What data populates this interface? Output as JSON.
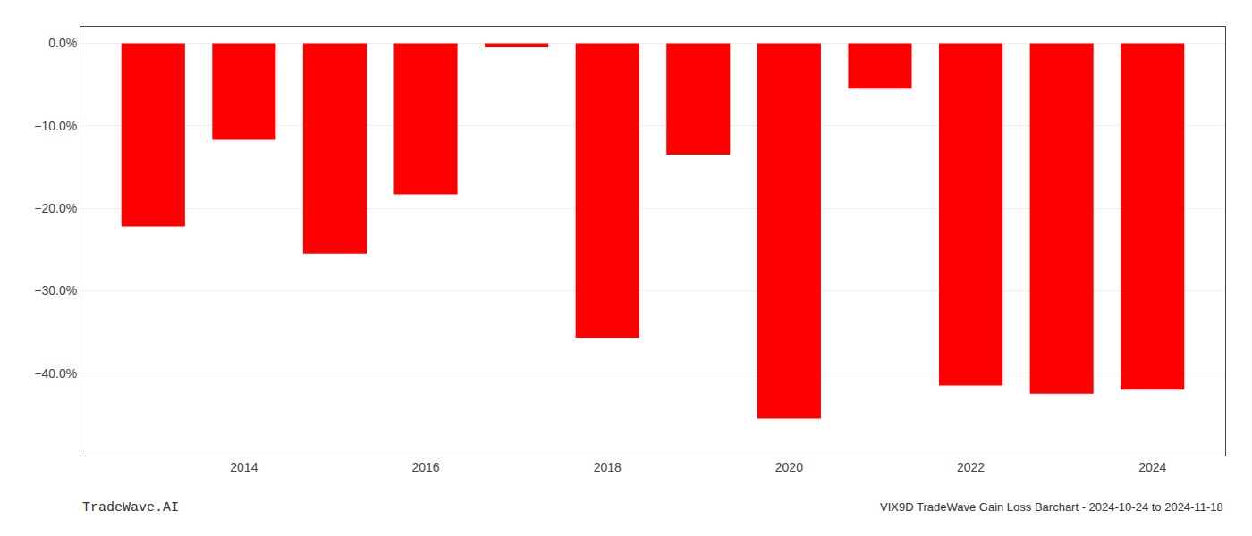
{
  "chart_data": {
    "type": "bar",
    "title": "VIX9D TradeWave Gain Loss Barchart - 2024-10-24 to 2024-11-18",
    "annotations": [
      "TradeWave.AI"
    ],
    "x": [
      2013,
      2014,
      2015,
      2016,
      2017,
      2018,
      2019,
      2020,
      2021,
      2022,
      2023,
      2024
    ],
    "values": [
      -0.222,
      -0.117,
      -0.255,
      -0.183,
      -0.005,
      -0.357,
      -0.135,
      -0.455,
      -0.055,
      -0.415,
      -0.425,
      -0.42
    ],
    "color": "#FF0000",
    "xlim": [
      2012.2,
      2024.8
    ],
    "xticks": [
      2014,
      2016,
      2018,
      2020,
      2022,
      2024
    ],
    "ylim": [
      -0.5,
      0.02
    ],
    "yticks": [
      {
        "value": 0.0,
        "label": "0.0%"
      },
      {
        "value": -0.1,
        "label": "−10.0%"
      },
      {
        "value": -0.2,
        "label": "−20.0%"
      },
      {
        "value": -0.3,
        "label": "−30.0%"
      },
      {
        "value": -0.4,
        "label": "−40.0%"
      }
    ],
    "grid": true
  }
}
